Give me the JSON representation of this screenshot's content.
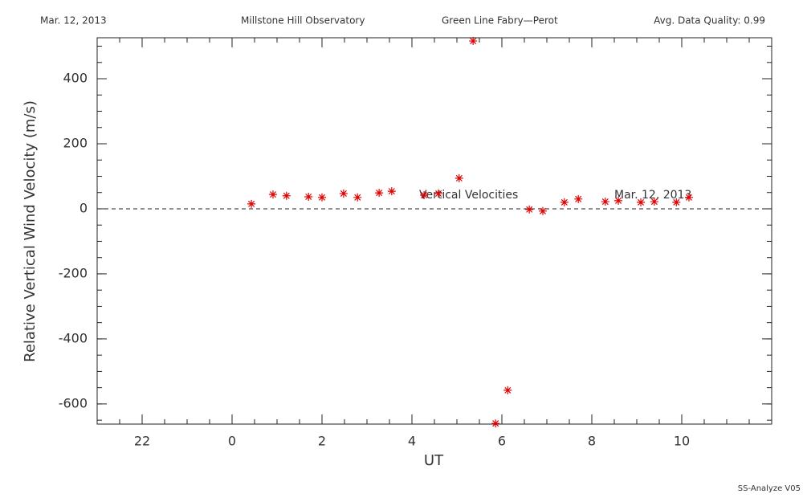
{
  "chart_data": {
    "type": "scatter",
    "header": [
      "Mar. 12, 2013",
      "Millstone Hill Observatory",
      "Green Line Fabry—Perot",
      "Avg. Data Quality: 0.99"
    ],
    "footer": "SS-Analyze V05",
    "xlabel": "UT",
    "ylabel": "Relative Vertical Wind Velocity  (m/s)",
    "annotations": [
      "Vertical Velocities",
      "Mar. 12, 2013"
    ],
    "xlim": [
      -3,
      12
    ],
    "ylim": [
      -662,
      526
    ],
    "xticks": [
      {
        "value": -2,
        "label": "22"
      },
      0,
      2,
      4,
      6,
      8,
      10
    ],
    "yticks": [
      -600,
      -400,
      -200,
      0,
      200,
      400
    ],
    "color": "#e00000",
    "series": [
      {
        "name": "Vertical Velocities",
        "x": [
          0.43,
          0.91,
          1.21,
          1.7,
          2.0,
          2.48,
          2.79,
          3.27,
          3.55,
          4.27,
          4.59,
          5.05,
          5.36,
          5.86,
          6.13,
          6.61,
          6.91,
          7.39,
          7.7,
          8.3,
          8.59,
          9.09,
          9.39,
          9.88,
          10.16
        ],
        "values": [
          15,
          44,
          40,
          37,
          35,
          47,
          35,
          49,
          54,
          42,
          47,
          94,
          516,
          -660,
          -558,
          -2,
          -7,
          20,
          30,
          22,
          25,
          20,
          22,
          20,
          35
        ]
      }
    ]
  }
}
